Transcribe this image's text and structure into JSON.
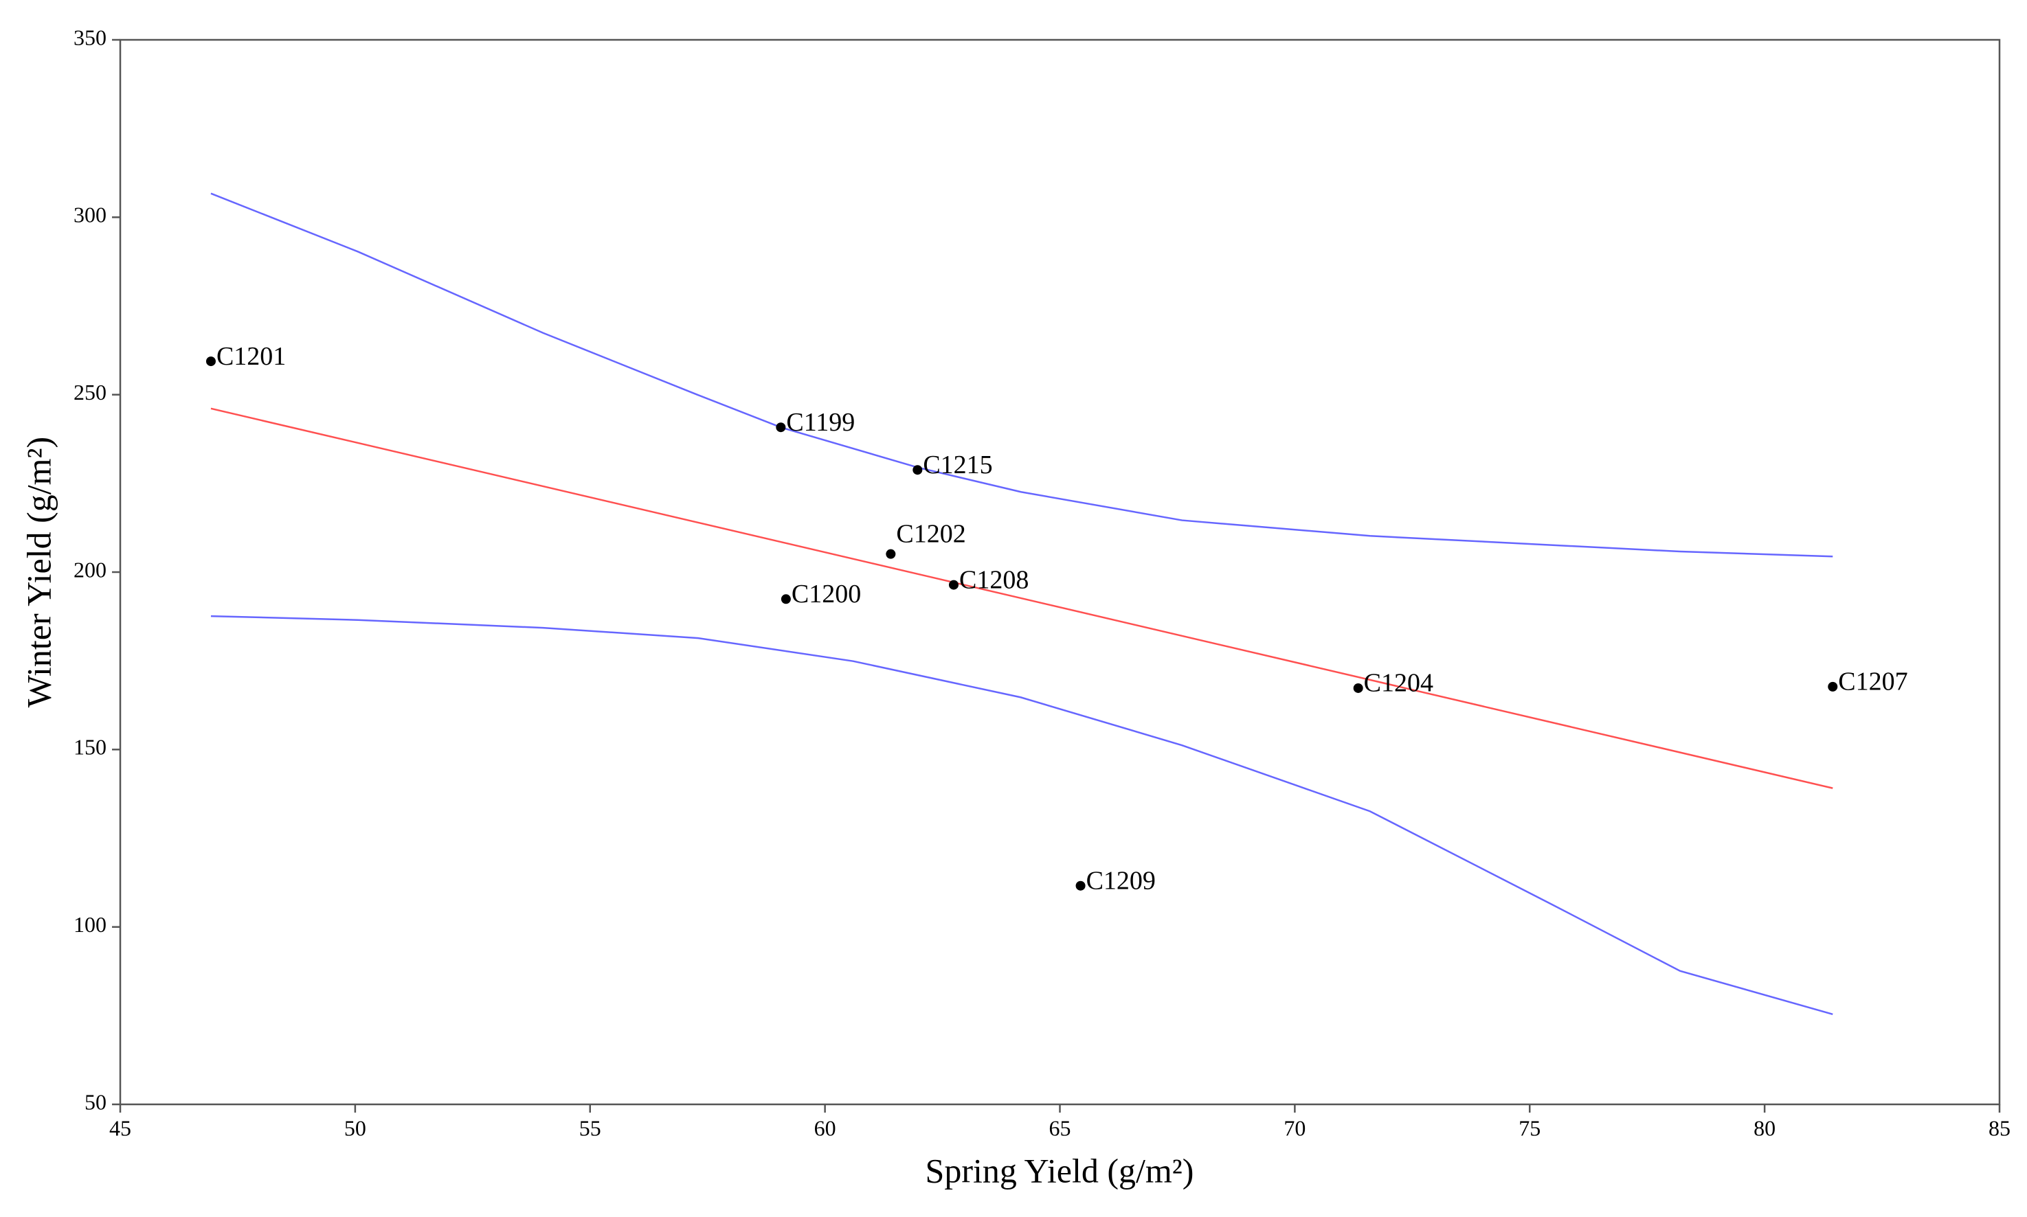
{
  "chart_data": {
    "type": "scatter",
    "x_label": "Spring Yield (g/m²)",
    "y_label": "Winter Yield (g/m²)",
    "xlim": [
      45,
      85
    ],
    "xticks": [
      45,
      50,
      55,
      60,
      65,
      70,
      75,
      80,
      85
    ],
    "ylim": [
      50,
      350
    ],
    "yticks": [
      50,
      100,
      150,
      200,
      250,
      300,
      350
    ],
    "points": {
      "color": "#000000",
      "label_color": "#1a1aff",
      "labels": [
        "C1201",
        "C1199",
        "C1215",
        "C1202",
        "C1208",
        "C1200",
        "C1204",
        "C1207",
        "C1209"
      ],
      "x": [
        46.93,
        59.06,
        61.97,
        61.4,
        62.74,
        59.17,
        71.35,
        81.45,
        65.44
      ],
      "values": [
        259.4,
        240.8,
        228.8,
        205.1,
        196.4,
        192.4,
        167.3,
        167.7,
        111.6
      ]
    },
    "fit_line": {
      "color": "#ff5050",
      "x": [
        46.93,
        81.45
      ],
      "values": [
        246.1,
        139.1
      ]
    },
    "confidence_band": {
      "color": "#6666ff",
      "upper": {
        "x": [
          46.93,
          50.06,
          54.0,
          57.3,
          59.06,
          61.97,
          64.17,
          67.6,
          71.6,
          78.2,
          81.45
        ],
        "values": [
          306.7,
          290.3,
          267.4,
          249.9,
          240.8,
          229.5,
          222.6,
          214.6,
          210.2,
          205.8,
          204.4
        ]
      },
      "lower": {
        "x": [
          46.93,
          50.06,
          54.0,
          57.3,
          60.6,
          64.17,
          67.6,
          71.6,
          75.45,
          78.2,
          81.45
        ],
        "values": [
          187.6,
          186.5,
          184.3,
          181.4,
          174.9,
          164.7,
          151.2,
          132.6,
          106.5,
          87.6,
          75.4
        ]
      }
    }
  }
}
